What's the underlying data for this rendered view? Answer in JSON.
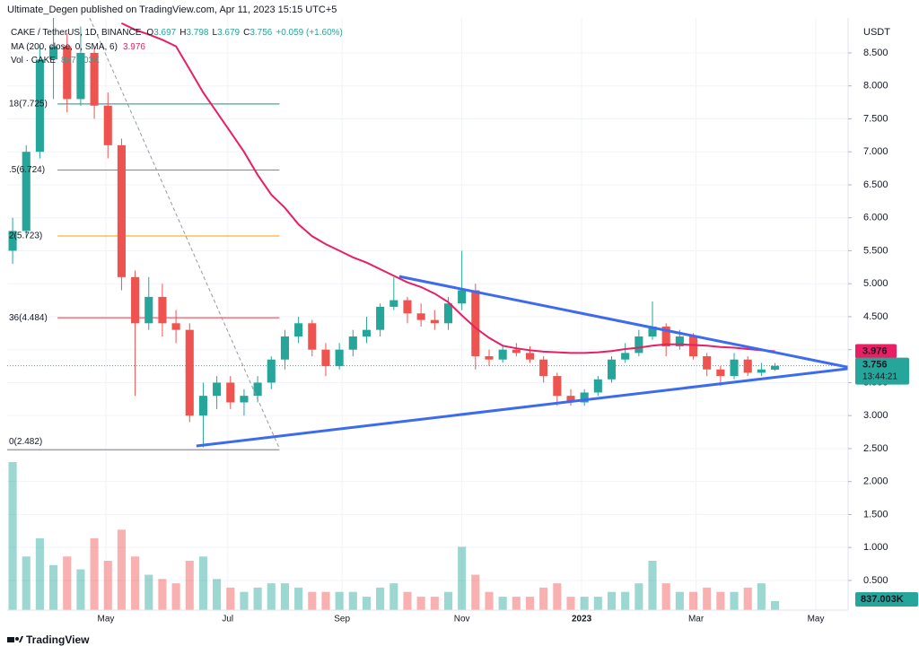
{
  "chart_data": {
    "type": "candlestick",
    "published": "Ultimate_Degen published on TradingView.com, Apr 11, 2023 15:15 UTC+5",
    "symbol": "CAKE / TetherUS, 1D, BINANCE",
    "ohlc_labels": [
      "O",
      "H",
      "L",
      "C"
    ],
    "change": "+0.059 (+1.60%)",
    "currency": "USDT",
    "countdown": "13:44:21",
    "footer": "TradingView",
    "up_color": "#26a69a",
    "down_color": "#ef5350",
    "open": [
      5.5,
      5.8,
      7.0,
      8.4,
      8.6,
      7.8,
      8.5,
      7.7,
      7.1,
      5.1,
      4.4,
      4.8,
      4.4,
      4.3,
      3.0,
      3.3,
      3.5,
      3.2,
      3.3,
      3.5,
      3.85,
      4.2,
      4.4,
      4.0,
      3.75,
      4.0,
      4.2,
      4.3,
      4.65,
      4.75,
      4.55,
      4.45,
      4.4,
      4.7,
      4.9,
      3.9,
      3.85,
      4.0,
      3.95,
      3.85,
      3.6,
      3.3,
      3.2,
      3.35,
      3.55,
      3.85,
      3.95,
      4.2,
      4.35,
      4.05,
      4.2,
      3.9,
      3.7,
      3.6,
      3.85,
      3.65,
      3.697
    ],
    "high": [
      6.0,
      7.1,
      8.6,
      9.2,
      8.8,
      8.9,
      8.6,
      7.9,
      7.2,
      5.2,
      5.1,
      5.0,
      4.6,
      4.4,
      3.5,
      3.6,
      3.6,
      3.4,
      3.6,
      3.9,
      4.3,
      4.5,
      4.45,
      4.1,
      4.1,
      4.3,
      4.5,
      4.7,
      5.1,
      4.8,
      4.7,
      4.6,
      4.8,
      5.5,
      5.0,
      4.0,
      4.05,
      4.1,
      4.05,
      3.9,
      3.65,
      3.4,
      3.4,
      3.6,
      3.9,
      4.1,
      4.3,
      4.73,
      4.4,
      4.3,
      4.25,
      3.95,
      3.75,
      3.95,
      3.9,
      3.8,
      3.798
    ],
    "low": [
      5.3,
      5.7,
      6.9,
      7.8,
      7.6,
      7.7,
      7.5,
      6.9,
      4.9,
      3.3,
      4.3,
      4.2,
      4.1,
      2.9,
      2.52,
      3.1,
      3.1,
      3.0,
      3.2,
      3.4,
      3.7,
      4.1,
      3.9,
      3.6,
      3.7,
      3.9,
      4.1,
      4.2,
      4.6,
      4.4,
      4.35,
      4.3,
      4.3,
      4.6,
      3.7,
      3.75,
      3.8,
      3.9,
      3.8,
      3.5,
      3.15,
      3.15,
      3.15,
      3.3,
      3.5,
      3.8,
      3.9,
      4.15,
      3.9,
      4.0,
      3.85,
      3.6,
      3.45,
      3.55,
      3.6,
      3.6,
      3.679
    ],
    "close": [
      5.8,
      7.0,
      8.4,
      8.6,
      7.8,
      8.5,
      7.7,
      7.1,
      5.1,
      4.4,
      4.8,
      4.4,
      4.3,
      3.0,
      3.3,
      3.5,
      3.2,
      3.3,
      3.5,
      3.85,
      4.2,
      4.4,
      4.0,
      3.75,
      4.0,
      4.2,
      4.3,
      4.65,
      4.75,
      4.55,
      4.45,
      4.4,
      4.7,
      4.9,
      3.9,
      3.85,
      4.0,
      3.95,
      3.85,
      3.6,
      3.3,
      3.2,
      3.35,
      3.55,
      3.85,
      3.95,
      4.2,
      4.35,
      4.05,
      4.2,
      3.9,
      3.7,
      3.6,
      3.85,
      3.65,
      3.7,
      3.756
    ],
    "series": [
      {
        "name": "MA (200, close, 0, SMA, 6)",
        "color": "#e91e63",
        "values": [
          null,
          null,
          null,
          null,
          null,
          null,
          null,
          null,
          8.95,
          8.85,
          8.78,
          8.7,
          8.6,
          8.25,
          7.9,
          7.6,
          7.3,
          7.0,
          6.65,
          6.35,
          6.15,
          5.9,
          5.72,
          5.6,
          5.5,
          5.4,
          5.32,
          5.22,
          5.12,
          5.02,
          4.95,
          4.85,
          4.72,
          4.52,
          4.33,
          4.18,
          4.06,
          4.02,
          3.99,
          3.97,
          3.96,
          3.95,
          3.95,
          3.96,
          3.98,
          4.01,
          4.03,
          4.06,
          4.08,
          4.08,
          4.07,
          4.06,
          4.04,
          4.03,
          4.01,
          3.99,
          3.976
        ]
      },
      {
        "name": "Vol · CAKE",
        "axis": "volume",
        "values": [
          13800,
          5000,
          6700,
          4200,
          5000,
          3800,
          6700,
          4600,
          7500,
          5000,
          3300,
          2900,
          2500,
          4600,
          5000,
          2900,
          2100,
          1700,
          2100,
          2500,
          2500,
          2100,
          1700,
          1700,
          1700,
          1700,
          1250,
          2100,
          2500,
          1700,
          1250,
          1250,
          1700,
          5900,
          3300,
          1700,
          1250,
          1250,
          1250,
          2100,
          2500,
          1250,
          1250,
          1250,
          1700,
          1700,
          2500,
          4600,
          2500,
          1700,
          1700,
          2100,
          1700,
          1700,
          2100,
          2500,
          837.003
        ],
        "last_label": "837.003K"
      }
    ],
    "fib_levels": [
      {
        "value": 7.725,
        "label": "18(7.725)",
        "color": "#089981"
      },
      {
        "value": 6.724,
        "label": ".5(6.724)",
        "color": "#4caf50"
      },
      {
        "value": 5.723,
        "label": "2(5.723)",
        "color": "#ff9800"
      },
      {
        "value": 4.484,
        "label": "36(4.484)",
        "color": "#f23645"
      },
      {
        "value": 2.482,
        "label": "0(2.482)",
        "color": "#787b86"
      }
    ],
    "fib_range": [
      3.3,
      19.6
    ],
    "trendlines": [
      {
        "from": [
          28.4,
          5.11
        ],
        "to": [
          61.7,
          3.72
        ],
        "color": "#3d6bf0",
        "style": "solid"
      },
      {
        "from": [
          13.5,
          2.54
        ],
        "to": [
          61.7,
          3.72
        ],
        "color": "#3d6bf0",
        "style": "solid"
      },
      {
        "from": [
          5.66,
          9.03
        ],
        "to": [
          19.6,
          2.5
        ],
        "color": "#9598a1",
        "style": "dashed"
      }
    ],
    "xlim": [
      -0.4,
      61.37
    ],
    "xticks": [
      {
        "value": 6.85,
        "label": "May"
      },
      {
        "value": 15.8,
        "label": "Jul"
      },
      {
        "value": 24.2,
        "label": "Sep"
      },
      {
        "value": 33.0,
        "label": "Nov"
      },
      {
        "value": 41.8,
        "label": "2023"
      },
      {
        "value": 50.2,
        "label": "Mar"
      },
      {
        "value": 59.0,
        "label": "May"
      }
    ],
    "ylim": [
      0.05,
      9.03
    ],
    "yticks": [
      {
        "value": 0.5,
        "label": "0.500"
      },
      {
        "value": 1,
        "label": "1.000"
      },
      {
        "value": 1.5,
        "label": "1.500"
      },
      {
        "value": 2,
        "label": "2.000"
      },
      {
        "value": 2.5,
        "label": "2.500"
      },
      {
        "value": 3,
        "label": "3.000"
      },
      {
        "value": 3.5,
        "label": "3.500"
      },
      {
        "value": 4,
        "label": "4.000"
      },
      {
        "value": 4.5,
        "label": "4.500"
      },
      {
        "value": 5,
        "label": "5.000"
      },
      {
        "value": 5.5,
        "label": "5.500"
      },
      {
        "value": 6,
        "label": "6.000"
      },
      {
        "value": 6.5,
        "label": "6.500"
      },
      {
        "value": 7,
        "label": "7.000"
      },
      {
        "value": 7.5,
        "label": "7.500"
      },
      {
        "value": 8,
        "label": "8.000"
      },
      {
        "value": 8.5,
        "label": "8.500"
      }
    ],
    "grid": true
  }
}
